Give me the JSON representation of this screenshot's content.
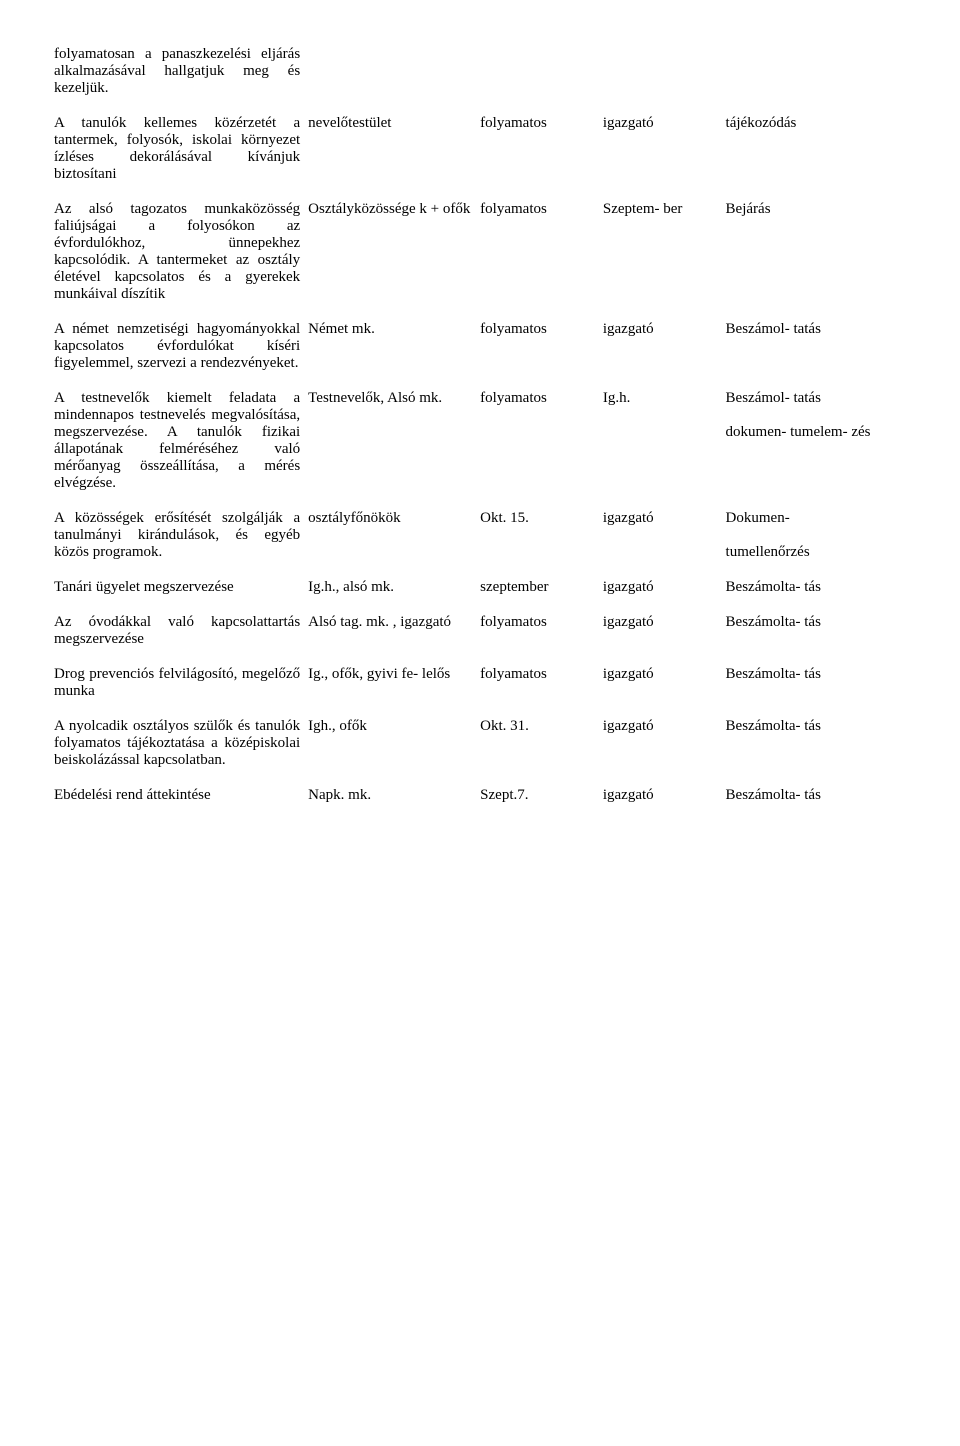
{
  "rows": [
    {
      "c1": "folyamatosan a panaszkezelési eljárás alkalmazásával hallgatjuk meg és kezeljük.",
      "c2": "",
      "c3": "",
      "c4": "",
      "c5": ""
    },
    {
      "c1": "A tanulók kellemes közérzetét a tantermek, folyosók, iskolai környezet ízléses dekorálásával kívánjuk biztosítani",
      "c2": "nevelőtestület",
      "c3": "folyamatos",
      "c4": "igazgató",
      "c5": "tájékozódás"
    },
    {
      "c1": "Az alsó tagozatos munkaközösség faliújságai a folyosókon az évfordulókhoz, ünnepekhez kapcsolódik. A tantermeket az osztály életével kapcsolatos és a gyerekek munkáival díszítik",
      "c2": "Osztályközössége k + ofők",
      "c3": "folyamatos",
      "c4": "Szeptem- ber",
      "c5": "Bejárás"
    },
    {
      "c1": "A német nemzetiségi hagyományokkal kapcsolatos évfordulókat kíséri figyelemmel, szervezi a rendezvényeket.",
      "c2": "Német mk.",
      "c3": "folyamatos",
      "c4": "igazgató",
      "c5": "Beszámol- tatás"
    },
    {
      "c1": "A testnevelők kiemelt feladata a mindennapos testnevelés megvalósítása, megszervezése. A tanulók fizikai állapotának felméréséhez való mérőanyag összeállítása, a mérés elvégzése.",
      "c2": "Testnevelők, Alsó mk.",
      "c3": "folyamatos",
      "c4": "Ig.h.",
      "c5": "Beszámol- tatás\n\ndokumen- tumelem- zés"
    },
    {
      "c1": "A közösségek erősítését szolgálják a tanulmányi kirándulások, és egyéb közös programok.",
      "c2": "osztályfőnökök",
      "c3": "Okt. 15.",
      "c4": "igazgató",
      "c5": "Dokumen-\n\ntumellenőrzés"
    },
    {
      "c1": "Tanári ügyelet megszervezése",
      "c2": "Ig.h., alsó mk.",
      "c3": "szeptember",
      "c4": "igazgató",
      "c5": "Beszámolta- tás"
    },
    {
      "c1": "Az óvodákkal való kapcsolattartás megszervezése",
      "c2": "Alsó tag. mk. , igazgató",
      "c3": "folyamatos",
      "c4": "igazgató",
      "c5": "Beszámolta- tás"
    },
    {
      "c1": "Drog prevenciós felvilágosító, megelőző munka",
      "c2": "Ig., ofők, gyivi fe- lelős",
      "c3": "folyamatos",
      "c4": "igazgató",
      "c5": "Beszámolta- tás"
    },
    {
      "c1": "A nyolcadik osztályos szülők és tanulók folyamatos tájékoztatása a középiskolai beiskolázással kapcsolatban.",
      "c2": "Igh., ofők",
      "c3": "Okt. 31.",
      "c4": "igazgató",
      "c5": "Beszámolta- tás"
    },
    {
      "c1": "Ebédelési rend áttekintése",
      "c2": "Napk. mk.",
      "c3": "Szept.7.",
      "c4": "igazgató",
      "c5": "Beszámolta- tás"
    }
  ]
}
